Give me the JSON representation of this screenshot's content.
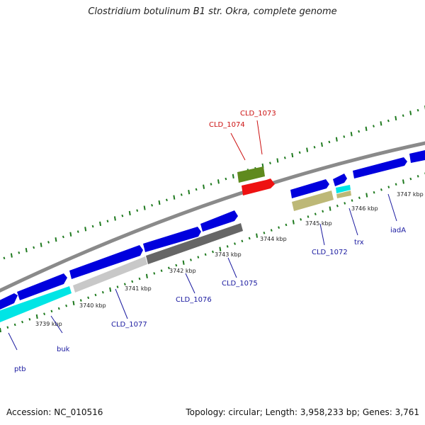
{
  "title": "Clostridium botulinum B1 str. Okra, complete genome",
  "accession": "Accession: NC_010516",
  "summary": "Topology: circular; Length: 3,958,233 bp; Genes: 3,761",
  "colors": {
    "backbone": "#8a8a8a",
    "tick": "#1f7a1f",
    "label_default": "#1a1aa0",
    "label_highlight": "#cc1111"
  },
  "scale_labels": [
    "3739 kbp",
    "3740 kbp",
    "3741 kbp",
    "3742 kbp",
    "3743 kbp",
    "3744 kbp",
    "3745 kbp",
    "3746 kbp",
    "3747 kbp"
  ],
  "genes": [
    {
      "id": "ptb",
      "label": "ptb",
      "color": "#00e5e5",
      "highlight": false
    },
    {
      "id": "buk",
      "label": "buk",
      "color": "#0000dd",
      "highlight": false
    },
    {
      "id": "CLD_1077",
      "label": "CLD_1077",
      "color": "#c8c8c8",
      "highlight": false
    },
    {
      "id": "CLD_1076",
      "label": "CLD_1076",
      "color": "#777777",
      "highlight": false
    },
    {
      "id": "CLD_1075",
      "label": "CLD_1075",
      "color": "#555555",
      "highlight": false
    },
    {
      "id": "CLD_1074",
      "label": "CLD_1074",
      "color": "#5f8a1e",
      "highlight": true
    },
    {
      "id": "CLD_1073",
      "label": "CLD_1073",
      "color": "#ee1111",
      "highlight": true
    },
    {
      "id": "CLD_1072",
      "label": "CLD_1072",
      "color": "#bdb877",
      "highlight": false
    },
    {
      "id": "trx",
      "label": "trx",
      "color": "#00e5e5",
      "highlight": false
    },
    {
      "id": "iadA",
      "label": "iadA",
      "color": "#0000dd",
      "highlight": false
    }
  ]
}
